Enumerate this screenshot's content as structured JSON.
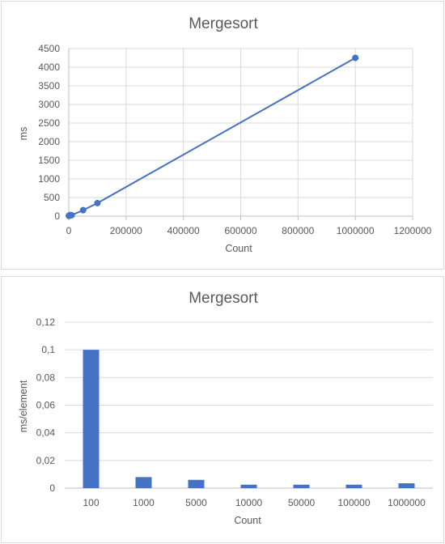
{
  "chart_data": [
    {
      "type": "scatter",
      "title": "Mergesort",
      "xlabel": "Count",
      "ylabel": "ms",
      "xlim": [
        0,
        1200000
      ],
      "ylim": [
        0,
        4500
      ],
      "xticks": [
        "0",
        "200000",
        "400000",
        "600000",
        "800000",
        "1000000",
        "1200000"
      ],
      "yticks": [
        "0",
        "500",
        "1000",
        "1500",
        "2000",
        "2500",
        "3000",
        "3500",
        "4000",
        "4500"
      ],
      "grid": true,
      "legend": "none",
      "color": "#4472C4",
      "series": [
        {
          "x": [
            100,
            1000,
            5000,
            10000,
            50000,
            100000,
            1000000
          ],
          "y": [
            10,
            8,
            30,
            25,
            160,
            350,
            4250
          ]
        }
      ]
    },
    {
      "type": "bar",
      "title": "Mergesort",
      "xlabel": "Count",
      "ylabel": "ms/element",
      "ylim": [
        0,
        0.12
      ],
      "yticks": [
        "0",
        "0,02",
        "0,04",
        "0,06",
        "0,08",
        "0,1",
        "0,12"
      ],
      "grid": true,
      "legend": "none",
      "color": "#4472C4",
      "categories": [
        "100",
        "1000",
        "5000",
        "10000",
        "50000",
        "100000",
        "1000000"
      ],
      "values": [
        0.1,
        0.008,
        0.006,
        0.0025,
        0.0025,
        0.0025,
        0.0035
      ]
    }
  ]
}
